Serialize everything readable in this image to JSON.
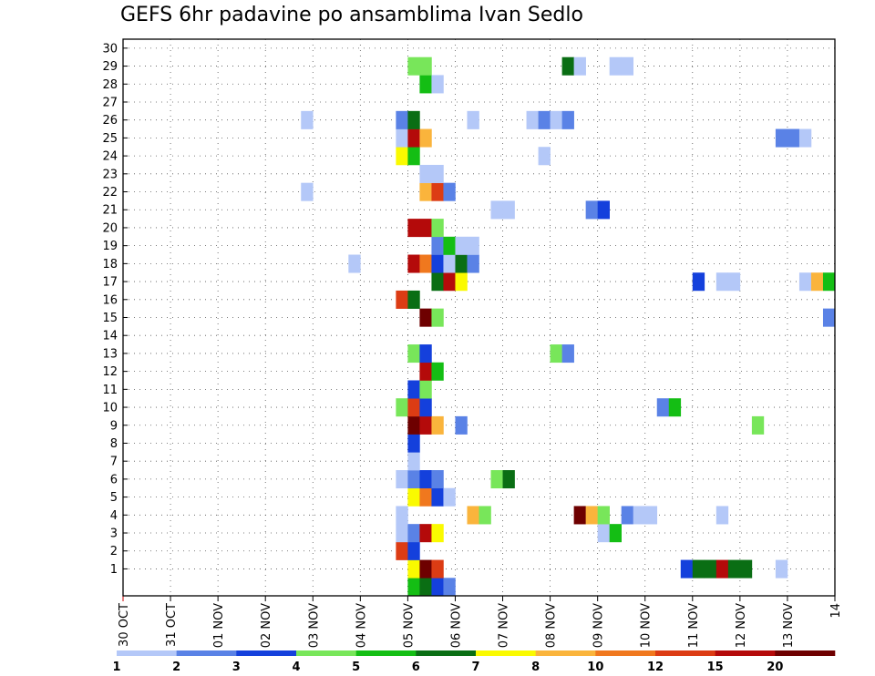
{
  "chart_data": {
    "type": "heatmap",
    "title": "GEFS 6hr padavine po ansamblima Ivan Sedlo",
    "y_ticks": [
      "1",
      "2",
      "3",
      "4",
      "5",
      "6",
      "7",
      "8",
      "9",
      "10",
      "11",
      "12",
      "13",
      "14",
      "15",
      "16",
      "17",
      "18",
      "19",
      "20",
      "21",
      "22",
      "23",
      "24",
      "25",
      "26",
      "27",
      "28",
      "29",
      "30"
    ],
    "y_range": [
      0,
      30
    ],
    "x_ticks": [
      "30 OCT",
      "31 OCT",
      "01 NOV",
      "02 NOV",
      "03 NOV",
      "04 NOV",
      "05 NOV",
      "06 NOV",
      "07 NOV",
      "08 NOV",
      "09 NOV",
      "10 NOV",
      "11 NOV",
      "12 NOV",
      "13 NOV",
      "14"
    ],
    "x_range_days": [
      0,
      15
    ],
    "grid": "dotted",
    "colorbar": {
      "labels": [
        "1",
        "2",
        "3",
        "4",
        "5",
        "6",
        "7",
        "8",
        "10",
        "12",
        "15",
        "20"
      ],
      "colors": [
        "#b4c8f8",
        "#5a82e6",
        "#1440dc",
        "#78e65a",
        "#14be14",
        "#0a6e14",
        "#fafa00",
        "#fab43c",
        "#f0781e",
        "#dc3c14",
        "#b40a0a",
        "#6e0000"
      ]
    },
    "cells": [
      {
        "m": 0,
        "d": 6.0,
        "c": 5
      },
      {
        "m": 0,
        "d": 6.25,
        "c": 6
      },
      {
        "m": 0,
        "d": 6.5,
        "c": 3
      },
      {
        "m": 0,
        "d": 6.75,
        "c": 2
      },
      {
        "m": 1,
        "d": 6.0,
        "c": 7
      },
      {
        "m": 1,
        "d": 6.25,
        "c": 12
      },
      {
        "m": 1,
        "d": 6.5,
        "c": 10
      },
      {
        "m": 1,
        "d": 11.75,
        "c": 3
      },
      {
        "m": 1,
        "d": 12.0,
        "c": 6
      },
      {
        "m": 1,
        "d": 12.25,
        "c": 6
      },
      {
        "m": 1,
        "d": 12.5,
        "c": 11
      },
      {
        "m": 1,
        "d": 12.75,
        "c": 6
      },
      {
        "m": 1,
        "d": 13.0,
        "c": 6
      },
      {
        "m": 1,
        "d": 13.75,
        "c": 1
      },
      {
        "m": 2,
        "d": 5.75,
        "c": 10
      },
      {
        "m": 2,
        "d": 6.0,
        "c": 3
      },
      {
        "m": 3,
        "d": 5.75,
        "c": 1
      },
      {
        "m": 3,
        "d": 6.0,
        "c": 2
      },
      {
        "m": 3,
        "d": 6.25,
        "c": 11
      },
      {
        "m": 3,
        "d": 6.5,
        "c": 7
      },
      {
        "m": 3,
        "d": 10.0,
        "c": 1
      },
      {
        "m": 3,
        "d": 10.25,
        "c": 5
      },
      {
        "m": 4,
        "d": 5.75,
        "c": 1
      },
      {
        "m": 4,
        "d": 7.25,
        "c": 8
      },
      {
        "m": 4,
        "d": 7.5,
        "c": 4
      },
      {
        "m": 4,
        "d": 9.5,
        "c": 12
      },
      {
        "m": 4,
        "d": 9.75,
        "c": 8
      },
      {
        "m": 4,
        "d": 10.0,
        "c": 4
      },
      {
        "m": 4,
        "d": 10.5,
        "c": 2
      },
      {
        "m": 4,
        "d": 10.75,
        "c": 1
      },
      {
        "m": 4,
        "d": 11.0,
        "c": 1
      },
      {
        "m": 4,
        "d": 12.5,
        "c": 1
      },
      {
        "m": 5,
        "d": 6.0,
        "c": 7
      },
      {
        "m": 5,
        "d": 6.25,
        "c": 9
      },
      {
        "m": 5,
        "d": 6.5,
        "c": 3
      },
      {
        "m": 5,
        "d": 6.75,
        "c": 1
      },
      {
        "m": 6,
        "d": 5.75,
        "c": 1
      },
      {
        "m": 6,
        "d": 6.0,
        "c": 2
      },
      {
        "m": 6,
        "d": 6.25,
        "c": 3
      },
      {
        "m": 6,
        "d": 6.5,
        "c": 2
      },
      {
        "m": 6,
        "d": 7.75,
        "c": 4
      },
      {
        "m": 6,
        "d": 8.0,
        "c": 6
      },
      {
        "m": 7,
        "d": 6.0,
        "c": 1
      },
      {
        "m": 8,
        "d": 6.0,
        "c": 3
      },
      {
        "m": 9,
        "d": 6.0,
        "c": 12
      },
      {
        "m": 9,
        "d": 6.25,
        "c": 11
      },
      {
        "m": 9,
        "d": 6.5,
        "c": 8
      },
      {
        "m": 9,
        "d": 7.0,
        "c": 2
      },
      {
        "m": 9,
        "d": 13.25,
        "c": 4
      },
      {
        "m": 10,
        "d": 5.75,
        "c": 4
      },
      {
        "m": 10,
        "d": 6.0,
        "c": 10
      },
      {
        "m": 10,
        "d": 6.25,
        "c": 3
      },
      {
        "m": 10,
        "d": 11.25,
        "c": 2
      },
      {
        "m": 10,
        "d": 11.5,
        "c": 5
      },
      {
        "m": 11,
        "d": 6.0,
        "c": 3
      },
      {
        "m": 11,
        "d": 6.25,
        "c": 4
      },
      {
        "m": 12,
        "d": 6.25,
        "c": 11
      },
      {
        "m": 12,
        "d": 6.5,
        "c": 5
      },
      {
        "m": 13,
        "d": 6.0,
        "c": 4
      },
      {
        "m": 13,
        "d": 6.25,
        "c": 3
      },
      {
        "m": 13,
        "d": 9.0,
        "c": 4
      },
      {
        "m": 13,
        "d": 9.25,
        "c": 2
      },
      {
        "m": 15,
        "d": 6.25,
        "c": 12
      },
      {
        "m": 15,
        "d": 6.5,
        "c": 4
      },
      {
        "m": 15,
        "d": 14.75,
        "c": 2
      },
      {
        "m": 16,
        "d": 5.75,
        "c": 10
      },
      {
        "m": 16,
        "d": 6.0,
        "c": 6
      },
      {
        "m": 17,
        "d": 6.5,
        "c": 6
      },
      {
        "m": 17,
        "d": 6.75,
        "c": 11
      },
      {
        "m": 17,
        "d": 7.0,
        "c": 7
      },
      {
        "m": 17,
        "d": 12.0,
        "c": 3
      },
      {
        "m": 17,
        "d": 12.5,
        "c": 1
      },
      {
        "m": 17,
        "d": 12.75,
        "c": 1
      },
      {
        "m": 17,
        "d": 14.25,
        "c": 1
      },
      {
        "m": 17,
        "d": 14.5,
        "c": 8
      },
      {
        "m": 17,
        "d": 14.75,
        "c": 5
      },
      {
        "m": 18,
        "d": 4.75,
        "c": 1
      },
      {
        "m": 18,
        "d": 6.0,
        "c": 11
      },
      {
        "m": 18,
        "d": 6.25,
        "c": 9
      },
      {
        "m": 18,
        "d": 6.5,
        "c": 3
      },
      {
        "m": 18,
        "d": 6.75,
        "c": 1
      },
      {
        "m": 18,
        "d": 7.0,
        "c": 6
      },
      {
        "m": 18,
        "d": 7.25,
        "c": 2
      },
      {
        "m": 19,
        "d": 6.5,
        "c": 2
      },
      {
        "m": 19,
        "d": 6.75,
        "c": 5
      },
      {
        "m": 19,
        "d": 7.0,
        "c": 1
      },
      {
        "m": 19,
        "d": 7.25,
        "c": 1
      },
      {
        "m": 20,
        "d": 6.0,
        "c": 11
      },
      {
        "m": 20,
        "d": 6.25,
        "c": 11
      },
      {
        "m": 20,
        "d": 6.5,
        "c": 4
      },
      {
        "m": 21,
        "d": 7.75,
        "c": 1
      },
      {
        "m": 21,
        "d": 8.0,
        "c": 1
      },
      {
        "m": 21,
        "d": 9.75,
        "c": 2
      },
      {
        "m": 21,
        "d": 10.0,
        "c": 3
      },
      {
        "m": 22,
        "d": 3.75,
        "c": 1
      },
      {
        "m": 22,
        "d": 6.25,
        "c": 8
      },
      {
        "m": 22,
        "d": 6.5,
        "c": 10
      },
      {
        "m": 22,
        "d": 6.75,
        "c": 2
      },
      {
        "m": 23,
        "d": 6.25,
        "c": 1
      },
      {
        "m": 23,
        "d": 6.5,
        "c": 1
      },
      {
        "m": 24,
        "d": 5.75,
        "c": 7
      },
      {
        "m": 24,
        "d": 6.0,
        "c": 5
      },
      {
        "m": 24,
        "d": 8.75,
        "c": 1
      },
      {
        "m": 25,
        "d": 5.75,
        "c": 1
      },
      {
        "m": 25,
        "d": 6.0,
        "c": 11
      },
      {
        "m": 25,
        "d": 6.25,
        "c": 8
      },
      {
        "m": 25,
        "d": 13.75,
        "c": 2
      },
      {
        "m": 25,
        "d": 14.0,
        "c": 2
      },
      {
        "m": 25,
        "d": 14.25,
        "c": 1
      },
      {
        "m": 26,
        "d": 3.75,
        "c": 1
      },
      {
        "m": 26,
        "d": 5.75,
        "c": 2
      },
      {
        "m": 26,
        "d": 6.0,
        "c": 6
      },
      {
        "m": 26,
        "d": 7.25,
        "c": 1
      },
      {
        "m": 26,
        "d": 8.5,
        "c": 1
      },
      {
        "m": 26,
        "d": 8.75,
        "c": 2
      },
      {
        "m": 26,
        "d": 9.0,
        "c": 1
      },
      {
        "m": 26,
        "d": 9.25,
        "c": 2
      },
      {
        "m": 28,
        "d": 6.25,
        "c": 5
      },
      {
        "m": 28,
        "d": 6.5,
        "c": 1
      },
      {
        "m": 29,
        "d": 6.0,
        "c": 4
      },
      {
        "m": 29,
        "d": 6.25,
        "c": 4
      },
      {
        "m": 29,
        "d": 9.25,
        "c": 6
      },
      {
        "m": 29,
        "d": 9.5,
        "c": 1
      },
      {
        "m": 29,
        "d": 10.25,
        "c": 1
      },
      {
        "m": 29,
        "d": 10.5,
        "c": 1
      }
    ]
  }
}
